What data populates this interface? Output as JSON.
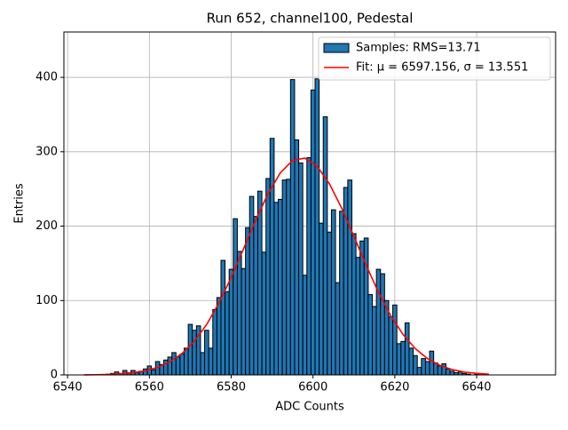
{
  "chart_data": {
    "type": "histogram",
    "title": "Run 652, channel100, Pedestal",
    "x_label": "ADC Counts",
    "y_label": "Entries",
    "xlim": [
      6539.1,
      6659.3
    ],
    "ylim": [
      0,
      461
    ],
    "xticks": [
      6540,
      6560,
      6580,
      6600,
      6620,
      6640
    ],
    "yticks": [
      0,
      100,
      200,
      300,
      400
    ],
    "grid": true,
    "legend": "upper right",
    "series": [
      {
        "type": "histogram",
        "name": "Samples: RMS=13.71",
        "color": "#1f77b4",
        "edgecolor": "#000000",
        "bins": [
          6549.5,
          6550.5,
          6551.5,
          6552.5,
          6553.5,
          6554.5,
          6555.5,
          6556.5,
          6557.5,
          6558.5,
          6559.5,
          6560.5,
          6561.5,
          6562.5,
          6563.5,
          6564.5,
          6565.5,
          6566.5,
          6567.5,
          6568.5,
          6569.5,
          6570.5,
          6571.5,
          6572.5,
          6573.5,
          6574.5,
          6575.5,
          6576.5,
          6577.5,
          6578.5,
          6579.5,
          6580.5,
          6581.5,
          6582.5,
          6583.5,
          6584.5,
          6585.5,
          6586.5,
          6587.5,
          6588.5,
          6589.5,
          6590.5,
          6591.5,
          6592.5,
          6593.5,
          6594.5,
          6595.5,
          6596.5,
          6597.5,
          6598.5,
          6599.5,
          6600.5,
          6601.5,
          6602.5,
          6603.5,
          6604.5,
          6605.5,
          6606.5,
          6607.5,
          6608.5,
          6609.5,
          6610.5,
          6611.5,
          6612.5,
          6613.5,
          6614.5,
          6615.5,
          6616.5,
          6617.5,
          6618.5,
          6619.5,
          6620.5,
          6621.5,
          6622.5,
          6623.5,
          6624.5,
          6625.5,
          6626.5,
          6627.5,
          6628.5,
          6629.5,
          6630.5,
          6631.5,
          6632.5,
          6633.5,
          6634.5,
          6635.5,
          6636.5,
          6637.5,
          6638.5,
          6639.5,
          6640.5
        ],
        "values": [
          1,
          2,
          4,
          2,
          6,
          3,
          6,
          3,
          5,
          8,
          12,
          7,
          18,
          14,
          20,
          24,
          30,
          24,
          28,
          36,
          68,
          60,
          66,
          30,
          60,
          36,
          88,
          104,
          154,
          112,
          142,
          210,
          166,
          143,
          198,
          240,
          213,
          247,
          165,
          264,
          318,
          232,
          236,
          262,
          263,
          397,
          316,
          285,
          134,
          292,
          383,
          398,
          204,
          347,
          192,
          222,
          124,
          220,
          252,
          262,
          190,
          158,
          180,
          184,
          108,
          92,
          142,
          136,
          100,
          78,
          94,
          42,
          45,
          70,
          36,
          26,
          10,
          22,
          18,
          32,
          16,
          12,
          15,
          8,
          5,
          3,
          4,
          2,
          1,
          0,
          1
        ]
      },
      {
        "type": "line",
        "name": "Fit: μ = 6597.156, σ = 13.551",
        "color": "#ff0000",
        "x": [
          6544,
          6547,
          6550,
          6553,
          6556,
          6559,
          6562,
          6565,
          6568,
          6571,
          6574,
          6577,
          6580,
          6583,
          6586,
          6589,
          6592,
          6595,
          6598,
          6601,
          6604,
          6607,
          6610,
          6613,
          6616,
          6619,
          6622,
          6625,
          6628,
          6631,
          6634,
          6637,
          6640,
          6643
        ],
        "values": [
          0.13,
          0.31,
          0.68,
          1.44,
          2.9,
          5.5,
          10.1,
          17.5,
          28.9,
          45.3,
          67.8,
          96.6,
          131.0,
          169.2,
          208.1,
          243.6,
          271.6,
          288.3,
          291.4,
          280.5,
          257.0,
          224.3,
          186.3,
          147.4,
          111.0,
          79.6,
          54.4,
          35.4,
          21.9,
          12.9,
          7.2,
          3.9,
          2.0,
          0.95
        ]
      }
    ]
  }
}
